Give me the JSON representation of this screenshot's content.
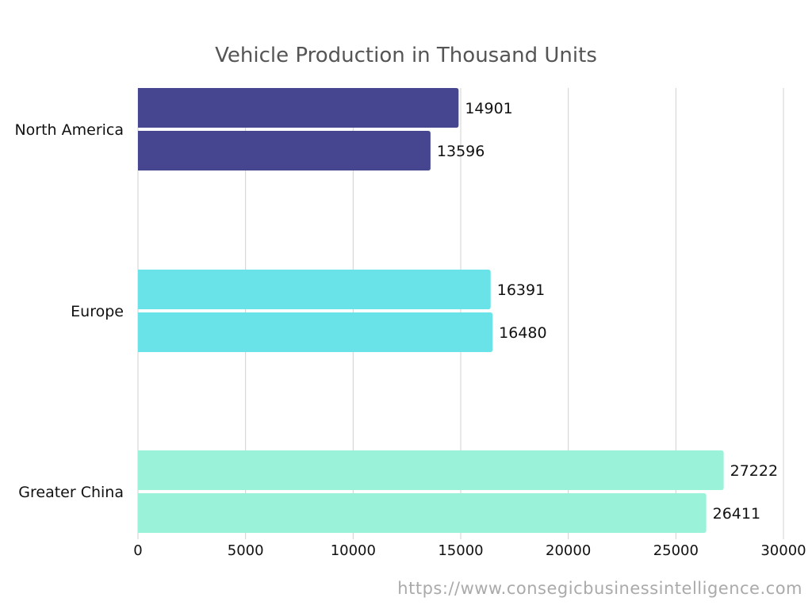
{
  "chart_data": {
    "type": "bar",
    "orientation": "horizontal",
    "title": "Vehicle Production in Thousand Units",
    "categories": [
      "North America",
      "Europe",
      "Greater China"
    ],
    "series": [
      {
        "values": [
          14901,
          16391,
          27222
        ]
      },
      {
        "values": [
          13596,
          16480,
          26411
        ]
      }
    ],
    "category_colors": [
      "#45468f",
      "#6ae3e8",
      "#9af2d8"
    ],
    "xlim": [
      0,
      30000
    ],
    "xticks": [
      0,
      5000,
      10000,
      15000,
      20000,
      25000,
      30000
    ],
    "grid": true,
    "xlabel": "",
    "ylabel": ""
  },
  "source_url": "https://www.consegicbusinessintelligence.com"
}
